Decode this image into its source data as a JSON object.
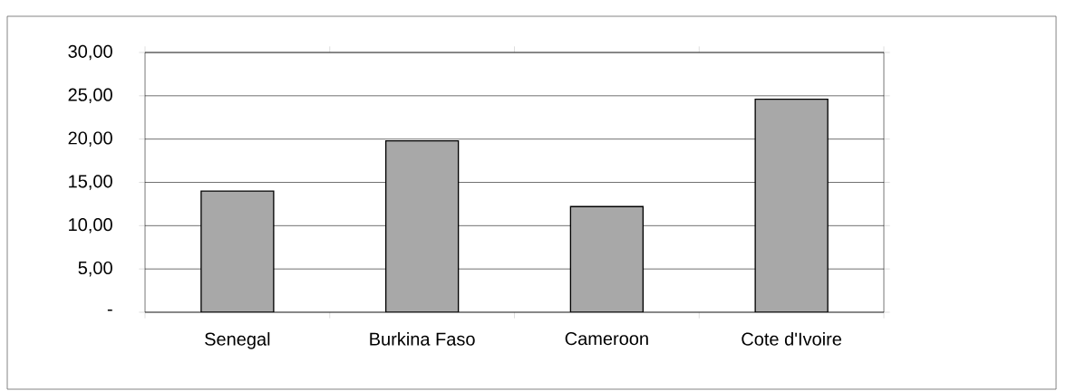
{
  "chart_data": {
    "type": "bar",
    "categories": [
      "Senegal",
      "Burkina Faso",
      "Cameroon",
      "Cote d'Ivoire"
    ],
    "values": [
      14.0,
      19.8,
      12.2,
      24.6
    ],
    "color": "#a8a8a8",
    "ylim": [
      0,
      30
    ],
    "yticks": [
      {
        "value": 0,
        "label": "-"
      },
      {
        "value": 5,
        "label": "5,00"
      },
      {
        "value": 10,
        "label": "10,00"
      },
      {
        "value": 15,
        "label": "15,00"
      },
      {
        "value": 20,
        "label": "20,00"
      },
      {
        "value": 25,
        "label": "25,00"
      },
      {
        "value": 30,
        "label": "30,00"
      }
    ],
    "grid": "y"
  }
}
